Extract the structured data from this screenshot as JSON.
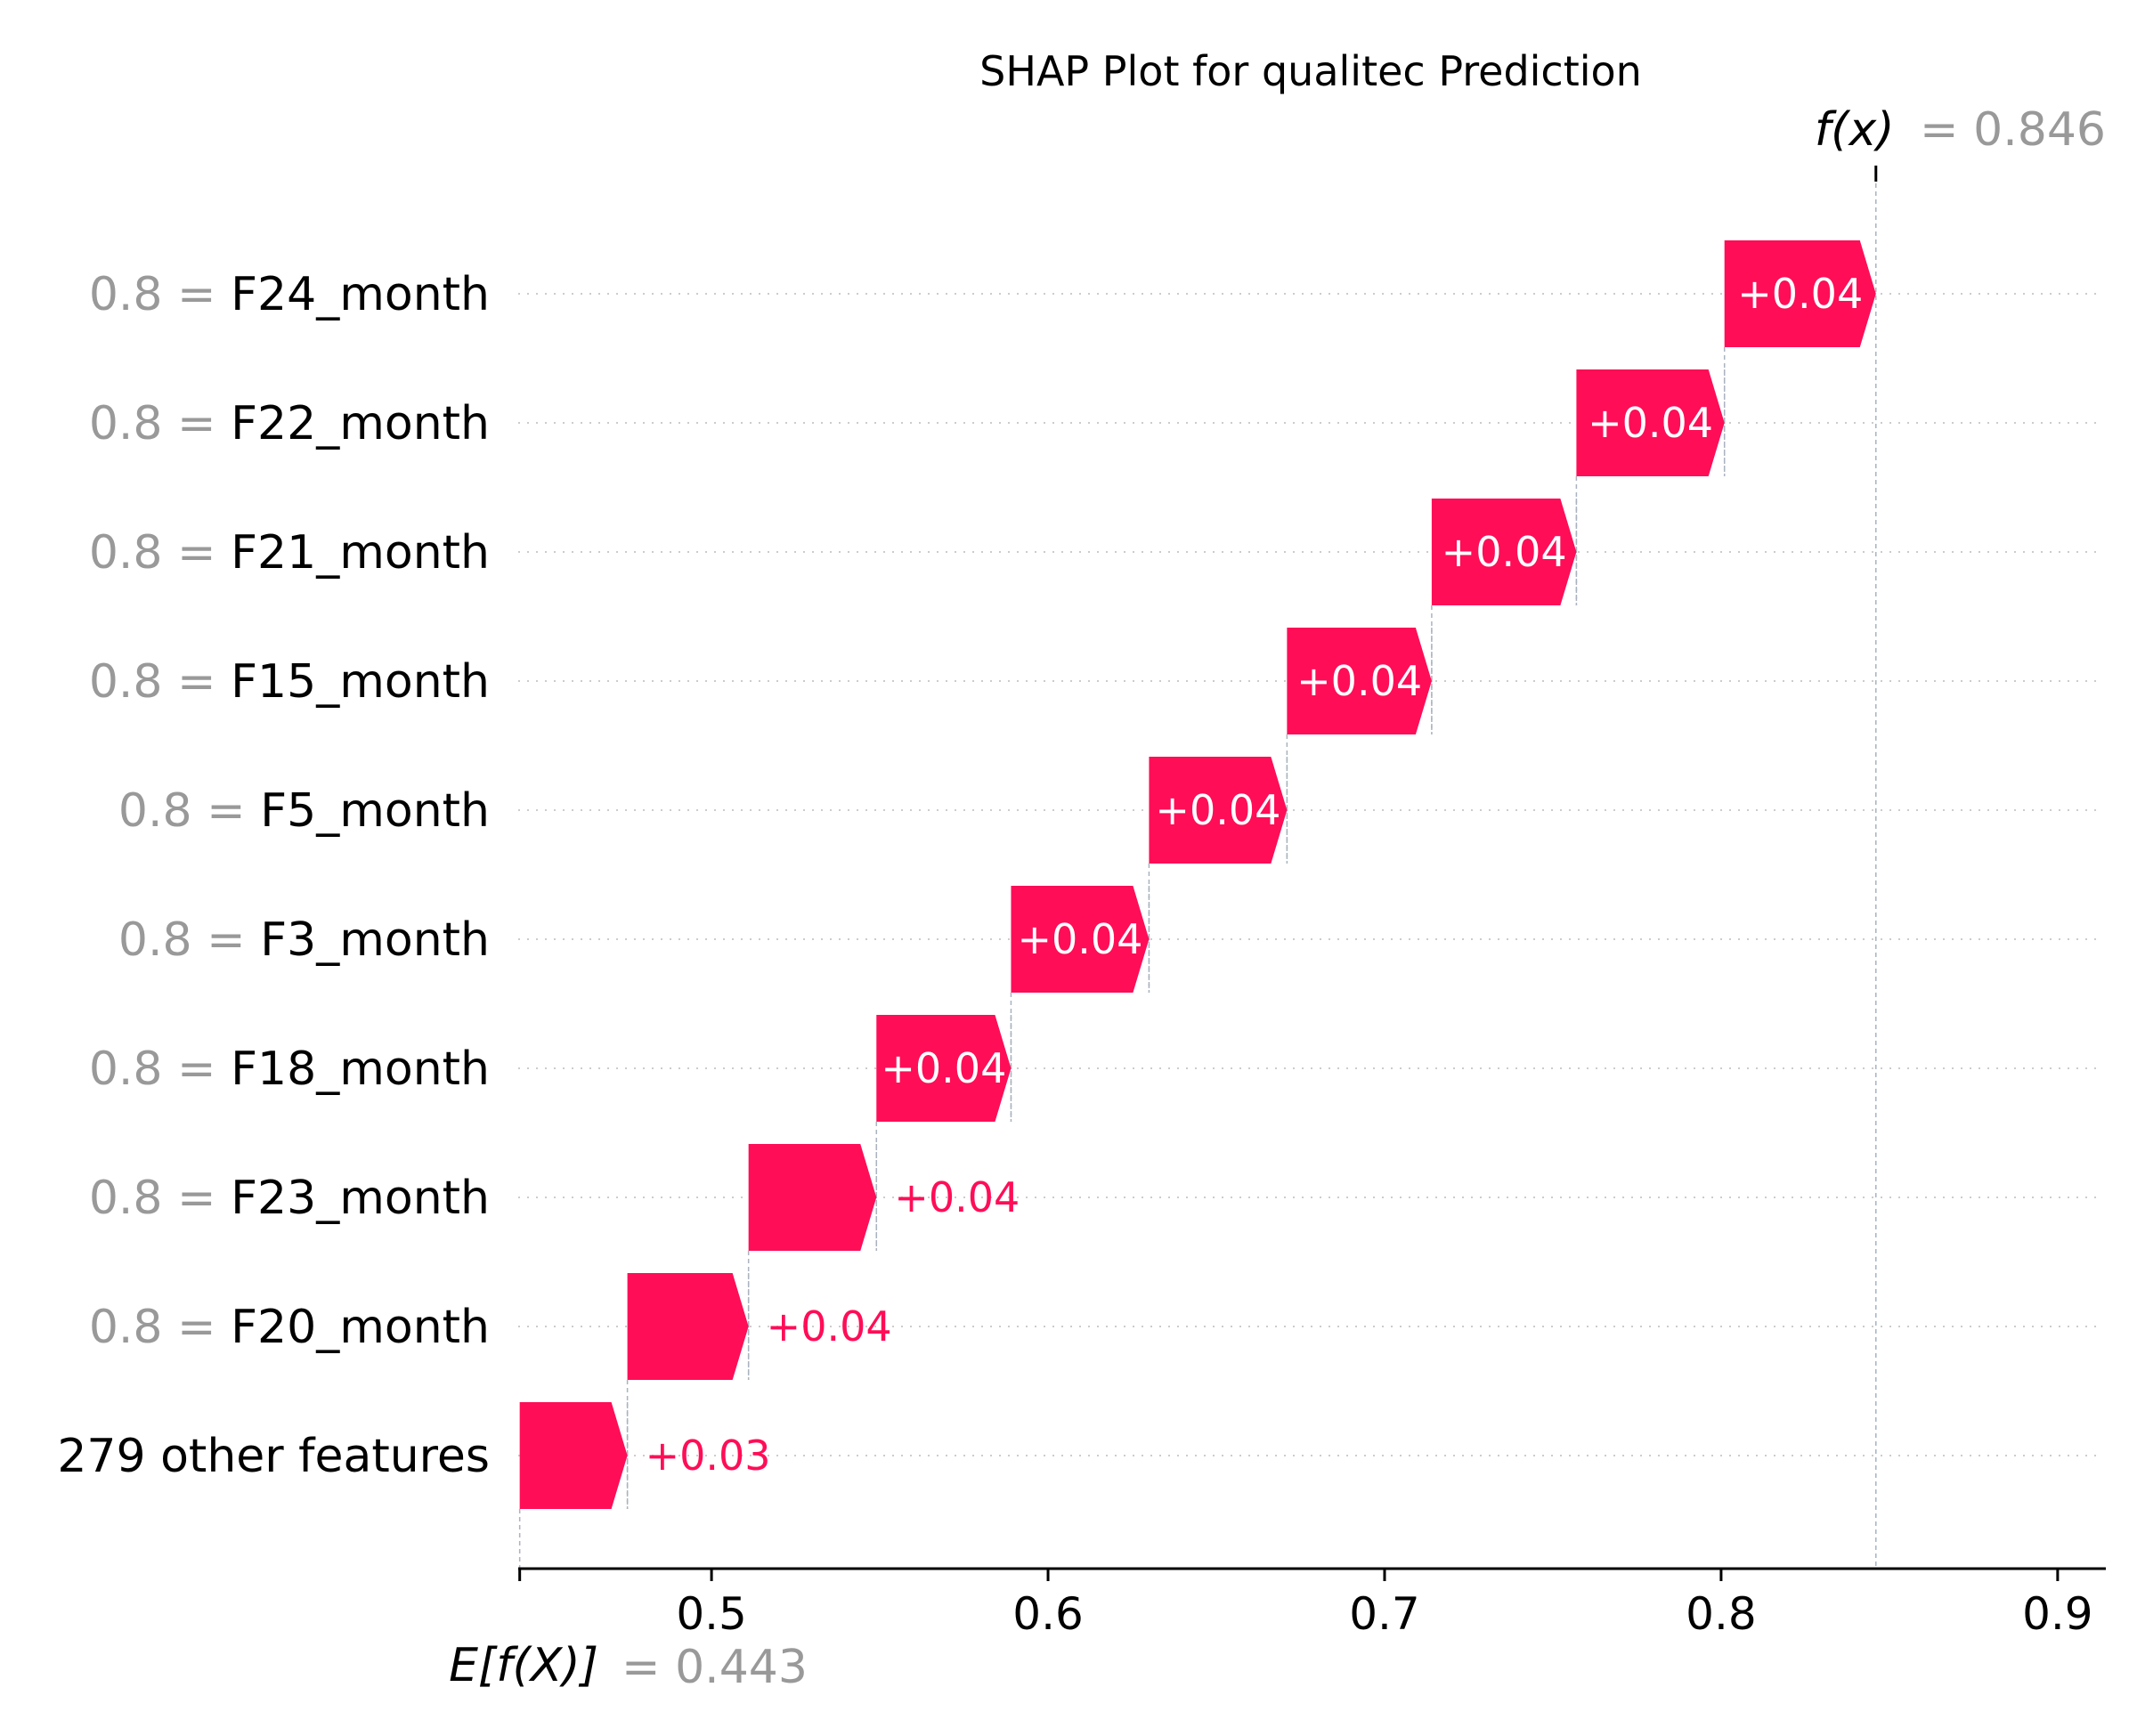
{
  "chart_data": {
    "type": "waterfall",
    "title": "SHAP Plot for qualitec Prediction",
    "base_value": 0.443,
    "base_label": "E[f(X)]",
    "base_value_text": "= 0.443",
    "output_value": 0.846,
    "output_label": "f(x)",
    "output_value_text": "= 0.846",
    "xlim": [
      0.446,
      0.913
    ],
    "x_ticks": [
      0.5,
      0.6,
      0.7,
      0.8,
      0.9
    ],
    "x_tick_labels": [
      "0.5",
      "0.6",
      "0.7",
      "0.8",
      "0.9"
    ],
    "grid": "dotted horizontal per row",
    "features": [
      {
        "value_text": "0.8 =",
        "name": "F24_month",
        "contribution": 0.045,
        "label": "+0.04",
        "start": 0.801,
        "end": 0.846
      },
      {
        "value_text": "0.8 =",
        "name": "F22_month",
        "contribution": 0.044,
        "label": "+0.04",
        "start": 0.757,
        "end": 0.801
      },
      {
        "value_text": "0.8 =",
        "name": "F21_month",
        "contribution": 0.043,
        "label": "+0.04",
        "start": 0.714,
        "end": 0.757
      },
      {
        "value_text": "0.8 =",
        "name": "F15_month",
        "contribution": 0.043,
        "label": "+0.04",
        "start": 0.671,
        "end": 0.714
      },
      {
        "value_text": "0.8 =",
        "name": "F5_month",
        "contribution": 0.041,
        "label": "+0.04",
        "start": 0.63,
        "end": 0.671
      },
      {
        "value_text": "0.8 =",
        "name": "F3_month",
        "contribution": 0.041,
        "label": "+0.04",
        "start": 0.589,
        "end": 0.63
      },
      {
        "value_text": "0.8 =",
        "name": "F18_month",
        "contribution": 0.04,
        "label": "+0.04",
        "start": 0.549,
        "end": 0.589
      },
      {
        "value_text": "0.8 =",
        "name": "F23_month",
        "contribution": 0.038,
        "label": "+0.04",
        "start": 0.511,
        "end": 0.549
      },
      {
        "value_text": "0.8 =",
        "name": "F20_month",
        "contribution": 0.036,
        "label": "+0.04",
        "start": 0.475,
        "end": 0.511
      },
      {
        "value_text": "",
        "name": "279 other features",
        "contribution": 0.032,
        "label": "+0.03",
        "start": 0.443,
        "end": 0.475
      }
    ],
    "colors": {
      "positive": "#ff0d57",
      "label_inside": "#ffffff",
      "value_grey": "#999999",
      "guide_line": "#aab3bf",
      "grid": "#cccccc"
    }
  }
}
